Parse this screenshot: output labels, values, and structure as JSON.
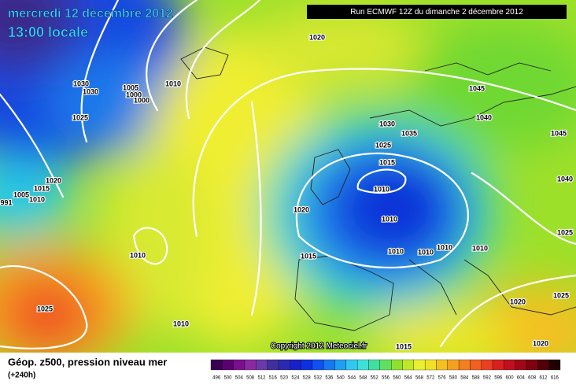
{
  "header": {
    "valid_date": "mercredi 12 décembre 2012",
    "valid_time": "13:00 locale",
    "run": "Run ECMWF 12Z du dimanche 2 décembre 2012"
  },
  "footer": {
    "copyright": "Copyright 2012 Meteociel.fr",
    "product": "Géop. z500, pression niveau mer",
    "lead_time": "(+240h)"
  },
  "isobar_labels": [
    "1020",
    "1010",
    "1030",
    "1030",
    "1005",
    "1000",
    "1000",
    "1025",
    "1045",
    "1040",
    "1030",
    "1035",
    "1045",
    "1025",
    "1015",
    "1010",
    "1040",
    "1020",
    "1015",
    "1005",
    "1010",
    "991",
    "1020",
    "1010",
    "1025",
    "1010",
    "1015",
    "1010",
    "1010",
    "1010",
    "1010",
    "1025",
    "1020",
    "1025",
    "1010",
    "1015",
    "1020"
  ],
  "scale": {
    "labels": [
      496,
      500,
      504,
      508,
      512,
      516,
      520,
      524,
      528,
      532,
      536,
      540,
      544,
      548,
      552,
      556,
      560,
      564,
      568,
      572,
      576,
      580,
      584,
      588,
      592,
      596,
      600,
      604,
      608,
      612,
      616
    ],
    "colors": [
      "#3a0050",
      "#5a0070",
      "#7a1090",
      "#8a2aa0",
      "#6a3aa8",
      "#40309a",
      "#2a2ab0",
      "#1a20c8",
      "#1030e0",
      "#1050f0",
      "#1878f0",
      "#20a0f0",
      "#30c8f0",
      "#40e0d8",
      "#40e0a0",
      "#60e060",
      "#90e030",
      "#c0e828",
      "#e8f030",
      "#f0e028",
      "#f4c020",
      "#f4a020",
      "#f08020",
      "#f06020",
      "#e84020",
      "#d82020",
      "#c01020",
      "#a00818",
      "#800010",
      "#500008",
      "#200000"
    ]
  }
}
